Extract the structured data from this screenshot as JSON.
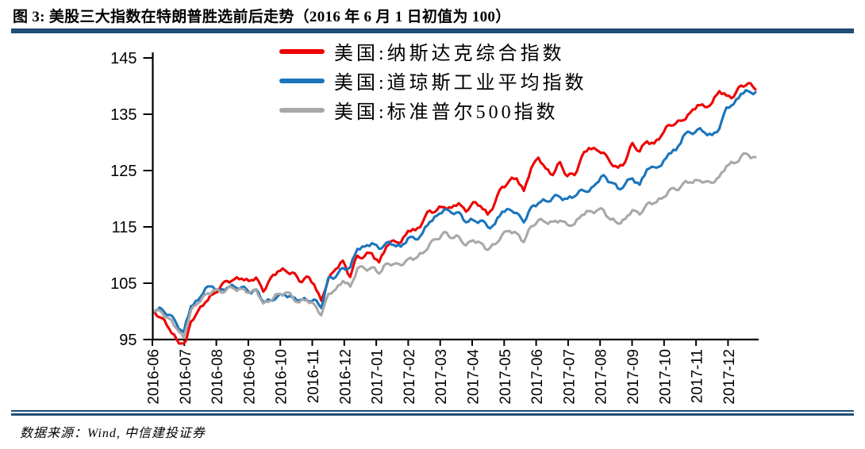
{
  "header": {
    "title": "图 3: 美股三大指数在特朗普胜选前后走势（2016 年 6 月 1 日初值为 100）"
  },
  "footer": {
    "source": "数据来源：Wind, 中信建投证券"
  },
  "chart_data": {
    "type": "line",
    "title": "美股三大指数在特朗普胜选前后走势（2016 年 6 月 1 日初值为 100）",
    "index_base": "2016-06-01 = 100",
    "x_description": "84 weekly observations, Jun 2016 – Dec 2017",
    "x_tick_labels": [
      "2016-06",
      "2016-07",
      "2016-08",
      "2016-09",
      "2016-10",
      "2016-11",
      "2016-12",
      "2017-01",
      "2017-02",
      "2017-03",
      "2017-04",
      "2017-05",
      "2017-06",
      "2017-07",
      "2017-08",
      "2017-09",
      "2017-10",
      "2017-11",
      "2017-12"
    ],
    "y_ticks": [
      145,
      135,
      125,
      115,
      105,
      95
    ],
    "ylim": [
      95,
      145
    ],
    "grid": "off",
    "legend_position": "top-center",
    "series": [
      {
        "id": "nasdaq",
        "name": "美国:纳斯达克综合指数",
        "color": "#EE0000",
        "values": [
          99.8,
          98.8,
          96.9,
          95.1,
          92.8,
          98.2,
          100.1,
          101.6,
          103.0,
          104.2,
          105.4,
          105.7,
          105.8,
          105.4,
          106.0,
          103.5,
          105.9,
          107.1,
          107.3,
          106.9,
          105.3,
          106.2,
          104.8,
          101.9,
          105.8,
          107.5,
          109.0,
          106.1,
          109.9,
          109.8,
          110.3,
          108.7,
          111.5,
          112.6,
          112.2,
          114.3,
          114.4,
          115.8,
          117.9,
          118.0,
          118.5,
          118.4,
          119.2,
          117.7,
          119.4,
          118.7,
          117.2,
          119.3,
          122.1,
          123.2,
          123.6,
          121.4,
          125.4,
          127.3,
          125.4,
          124.2,
          126.5,
          124.0,
          124.2,
          127.5,
          129.0,
          128.7,
          128.2,
          126.3,
          125.5,
          126.5,
          129.9,
          128.4,
          130.2,
          129.8,
          131.2,
          133.1,
          133.4,
          133.9,
          135.3,
          136.6,
          136.3,
          137.0,
          139.1,
          138.3,
          138.1,
          140.1,
          140.5,
          139.4
        ]
      },
      {
        "id": "dow",
        "name": "美国:道琼斯工业平均指数",
        "color": "#1B75BC",
        "values": [
          100.1,
          100.4,
          99.4,
          97.8,
          96.3,
          100.9,
          102.0,
          104.1,
          104.4,
          103.6,
          104.2,
          104.4,
          104.3,
          103.4,
          103.9,
          101.7,
          101.9,
          102.7,
          102.9,
          102.5,
          102.0,
          102.0,
          102.1,
          100.6,
          106.0,
          106.1,
          107.7,
          107.8,
          111.1,
          111.5,
          112.1,
          111.1,
          112.2,
          111.8,
          111.5,
          113.0,
          112.8,
          113.9,
          115.9,
          117.0,
          118.1,
          117.5,
          117.6,
          115.8,
          116.2,
          116.1,
          115.0,
          115.5,
          117.7,
          118.1,
          117.5,
          115.8,
          118.5,
          119.2,
          119.6,
          120.2,
          120.3,
          120.0,
          120.4,
          121.6,
          121.3,
          122.7,
          124.2,
          122.9,
          121.8,
          122.6,
          123.6,
          122.5,
          125.2,
          125.6,
          125.9,
          128.0,
          128.6,
          131.1,
          131.7,
          132.3,
          131.7,
          131.3,
          132.4,
          136.2,
          136.8,
          138.6,
          139.1,
          138.9
        ]
      },
      {
        "id": "sp500",
        "name": "美国:标准普尔500指数",
        "color": "#A8A8A8",
        "values": [
          100.0,
          99.8,
          98.7,
          97.0,
          95.3,
          100.2,
          101.5,
          103.0,
          103.6,
          103.5,
          104.0,
          104.0,
          104.0,
          103.3,
          103.8,
          101.4,
          101.9,
          103.1,
          103.3,
          102.6,
          101.6,
          102.0,
          101.3,
          99.3,
          103.1,
          103.9,
          105.4,
          104.4,
          107.6,
          107.6,
          107.8,
          106.7,
          108.5,
          108.4,
          108.2,
          109.3,
          109.4,
          110.3,
          112.0,
          112.8,
          114.1,
          113.0,
          113.3,
          111.7,
          112.6,
          112.2,
          110.9,
          111.9,
          113.6,
          114.3,
          113.9,
          112.3,
          115.1,
          116.2,
          115.8,
          115.9,
          116.1,
          115.4,
          115.5,
          117.1,
          117.8,
          117.8,
          118.0,
          116.3,
          115.6,
          116.4,
          118.0,
          117.2,
          119.1,
          119.2,
          120.0,
          121.4,
          121.6,
          122.7,
          122.9,
          123.3,
          123.0,
          122.8,
          123.9,
          125.8,
          126.3,
          127.5,
          127.8,
          127.4
        ]
      }
    ]
  }
}
